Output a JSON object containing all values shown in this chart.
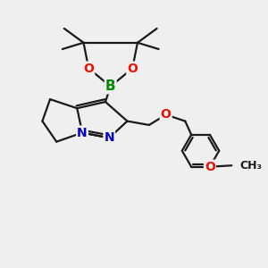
{
  "background_color": "#efefef",
  "bond_color": "#1a1a1a",
  "bond_width": 1.6,
  "atom_colors": {
    "B": "#008800",
    "O": "#ee1100",
    "N": "#0000cc",
    "C": "#1a1a1a"
  },
  "font_size_atom": 10,
  "figsize": [
    3.0,
    3.0
  ],
  "dpi": 100
}
